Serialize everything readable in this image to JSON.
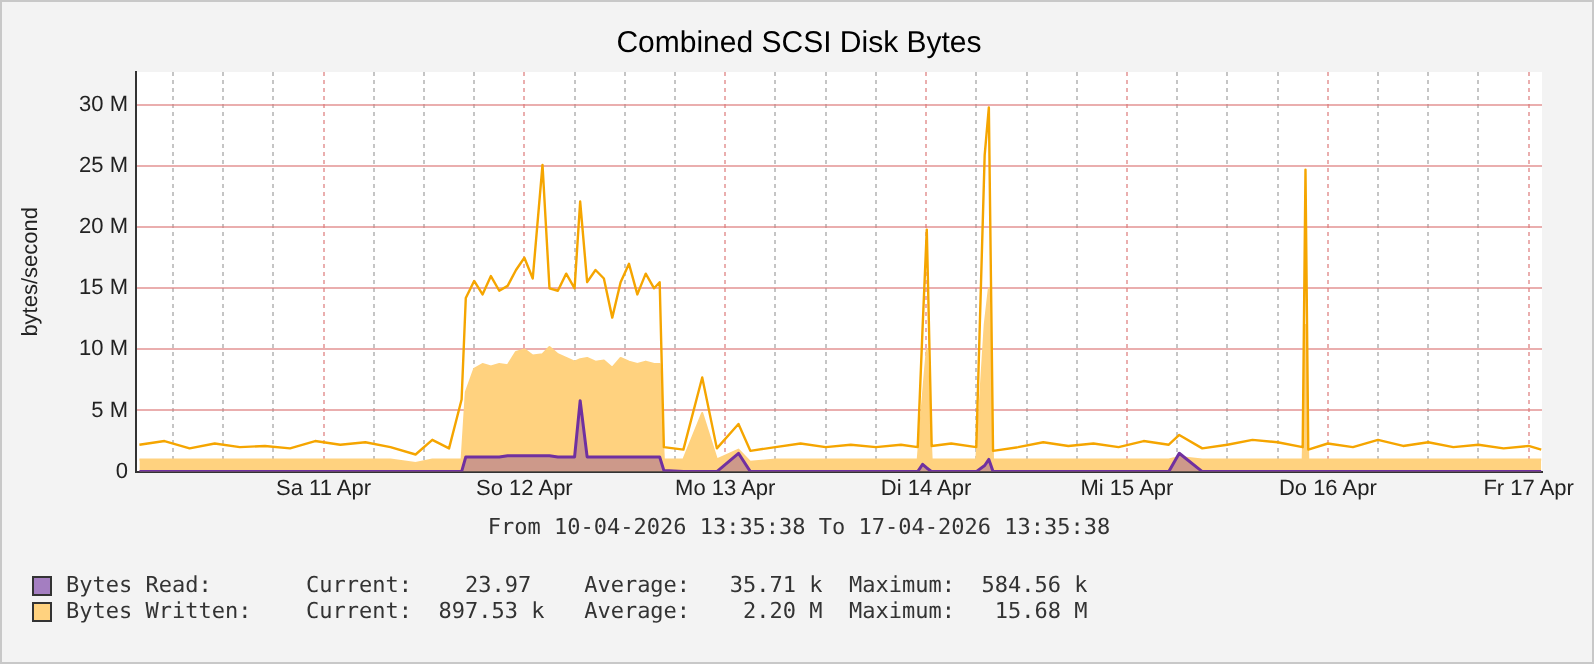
{
  "chart_data": {
    "type": "area",
    "title": "Combined SCSI Disk Bytes",
    "ylabel": "bytes/second",
    "annotations": [
      "From 10-04-2026 13:35:38 To 17-04-2026 13:35:38",
      "Current:    23.97    Average:   35.71 k  Maximum:  584.56 k",
      "Current:  897.53 k   Average:    2.20 M  Maximum:   15.68 M"
    ],
    "x": [
      "2026-04-10T14:00",
      "2026-04-10T17:00",
      "2026-04-10T20:00",
      "2026-04-10T23:00",
      "2026-04-11T02:00",
      "2026-04-11T05:00",
      "2026-04-11T08:00",
      "2026-04-11T11:00",
      "2026-04-11T14:00",
      "2026-04-11T17:00",
      "2026-04-11T20:00",
      "2026-04-11T23:00",
      "2026-04-12T01:00",
      "2026-04-12T03:00",
      "2026-04-12T04:30",
      "2026-04-12T05:00",
      "2026-04-12T06:00",
      "2026-04-12T07:00",
      "2026-04-12T08:00",
      "2026-04-12T09:00",
      "2026-04-12T10:00",
      "2026-04-12T11:00",
      "2026-04-12T12:00",
      "2026-04-12T13:00",
      "2026-04-12T14:10",
      "2026-04-12T15:00",
      "2026-04-12T16:00",
      "2026-04-12T17:00",
      "2026-04-12T18:00",
      "2026-04-12T18:40",
      "2026-04-12T19:30",
      "2026-04-12T20:30",
      "2026-04-12T21:30",
      "2026-04-12T22:30",
      "2026-04-12T23:30",
      "2026-04-13T00:30",
      "2026-04-13T01:30",
      "2026-04-13T02:30",
      "2026-04-13T03:30",
      "2026-04-13T04:10",
      "2026-04-13T04:40",
      "2026-04-13T07:00",
      "2026-04-13T09:15",
      "2026-04-13T11:00",
      "2026-04-13T13:35",
      "2026-04-13T15:00",
      "2026-04-13T18:00",
      "2026-04-13T21:00",
      "2026-04-14T00:00",
      "2026-04-14T03:00",
      "2026-04-14T06:00",
      "2026-04-14T09:00",
      "2026-04-14T11:00",
      "2026-04-14T11:35",
      "2026-04-14T12:05",
      "2026-04-14T12:40",
      "2026-04-14T15:00",
      "2026-04-14T18:00",
      "2026-04-14T19:00",
      "2026-04-14T19:30",
      "2026-04-14T20:00",
      "2026-04-14T23:00",
      "2026-04-15T02:00",
      "2026-04-15T05:00",
      "2026-04-15T08:00",
      "2026-04-15T11:00",
      "2026-04-15T14:00",
      "2026-04-15T17:00",
      "2026-04-15T18:15",
      "2026-04-15T21:00",
      "2026-04-16T00:00",
      "2026-04-16T03:00",
      "2026-04-16T06:00",
      "2026-04-16T09:00",
      "2026-04-16T09:20",
      "2026-04-16T09:40",
      "2026-04-16T12:00",
      "2026-04-16T15:00",
      "2026-04-16T18:00",
      "2026-04-16T21:00",
      "2026-04-17T00:00",
      "2026-04-17T03:00",
      "2026-04-17T06:00",
      "2026-04-17T09:00",
      "2026-04-17T12:00",
      "2026-04-17T13:30"
    ],
    "series": [
      {
        "name": "Bytes Read:",
        "type": "area",
        "color": "#7030a0",
        "values": [
          0,
          0,
          0,
          0,
          0,
          0,
          0,
          0,
          0,
          0,
          0,
          0,
          0,
          0,
          0,
          1200000.0,
          1200000.0,
          1200000.0,
          1200000.0,
          1200000.0,
          1300000.0,
          1300000.0,
          1300000.0,
          1300000.0,
          1300000.0,
          1300000.0,
          1200000.0,
          1200000.0,
          1200000.0,
          5800000.0,
          1200000.0,
          1200000.0,
          1200000.0,
          1200000.0,
          1200000.0,
          1200000.0,
          1200000.0,
          1200000.0,
          1200000.0,
          1200000.0,
          100000.0,
          0,
          0,
          0,
          1500000.0,
          0,
          0,
          0,
          0,
          0,
          0,
          0,
          0,
          600000.0,
          300000.0,
          0,
          0,
          0,
          500000.0,
          1000000.0,
          0,
          0,
          0,
          0,
          0,
          0,
          0,
          0,
          1500000.0,
          0,
          0,
          0,
          0,
          0,
          0,
          0,
          0,
          0,
          0,
          0,
          0,
          0,
          0,
          0,
          0,
          0
        ]
      },
      {
        "name": "Bytes Written:",
        "type": "area",
        "color": "#ffd27f",
        "values": [
          1000000.0,
          1000000.0,
          1000000.0,
          1000000.0,
          1000000.0,
          1000000.0,
          1000000.0,
          1000000.0,
          1000000.0,
          1000000.0,
          1000000.0,
          700000.0,
          1000000.0,
          1000000.0,
          1000000.0,
          6500000.0,
          8400000.0,
          8800000.0,
          8600000.0,
          8800000.0,
          8700000.0,
          9800000.0,
          10000000.0,
          9500000.0,
          9600000.0,
          10200000.0,
          9600000.0,
          9300000.0,
          9000000.0,
          9200000.0,
          9300000.0,
          9000000.0,
          9100000.0,
          8500000.0,
          9300000.0,
          9000000.0,
          8800000.0,
          9000000.0,
          8800000.0,
          8800000.0,
          1000000.0,
          1000000.0,
          4800000.0,
          1000000.0,
          1800000.0,
          800000.0,
          1000000.0,
          1000000.0,
          1000000.0,
          1000000.0,
          1000000.0,
          1000000.0,
          1000000.0,
          6000000.0,
          10000000.0,
          1000000.0,
          1000000.0,
          1000000.0,
          12000000.0,
          15000000.0,
          1000000.0,
          1000000.0,
          1000000.0,
          1000000.0,
          1000000.0,
          1000000.0,
          1000000.0,
          1000000.0,
          1200000.0,
          1000000.0,
          1000000.0,
          1000000.0,
          1000000.0,
          1000000.0,
          12000000.0,
          1000000.0,
          1000000.0,
          1000000.0,
          1000000.0,
          1000000.0,
          1000000.0,
          1000000.0,
          1000000.0,
          1000000.0,
          1000000.0,
          1000000.0
        ]
      },
      {
        "type": "line",
        "color": "#f5a500",
        "values": [
          2200000.0,
          2500000.0,
          1900000.0,
          2300000.0,
          2000000.0,
          2100000.0,
          1900000.0,
          2500000.0,
          2200000.0,
          2400000.0,
          2000000.0,
          1400000.0,
          2600000.0,
          1900000.0,
          5900000.0,
          14200000.0,
          15600000.0,
          14500000.0,
          16000000.0,
          14800000.0,
          15200000.0,
          16500000.0,
          17500000.0,
          15800000.0,
          25100000.0,
          15000000.0,
          14800000.0,
          16200000.0,
          15000000.0,
          22100000.0,
          15500000.0,
          16500000.0,
          15800000.0,
          12600000.0,
          15500000.0,
          17000000.0,
          14500000.0,
          16200000.0,
          15000000.0,
          15500000.0,
          2000000.0,
          1800000.0,
          7700000.0,
          1900000.0,
          3900000.0,
          1700000.0,
          2000000.0,
          2300000.0,
          2000000.0,
          2200000.0,
          2000000.0,
          2200000.0,
          2000000.0,
          11800000.0,
          19800000.0,
          2100000.0,
          2300000.0,
          2000000.0,
          25900000.0,
          29800000.0,
          1700000.0,
          2000000.0,
          2400000.0,
          2100000.0,
          2300000.0,
          2000000.0,
          2500000.0,
          2200000.0,
          3000000.0,
          1900000.0,
          2200000.0,
          2600000.0,
          2400000.0,
          2000000.0,
          24700000.0,
          1800000.0,
          2300000.0,
          2000000.0,
          2600000.0,
          2100000.0,
          2400000.0,
          2000000.0,
          2200000.0,
          1900000.0,
          2100000.0,
          1800000.0
        ]
      }
    ],
    "xlim": [
      "2026-04-10T13:35:38",
      "2026-04-17T13:35:38"
    ],
    "xticks": [
      {
        "value": "2026-04-10T18:00",
        "label": null
      },
      {
        "value": "2026-04-11T00:00",
        "label": null
      },
      {
        "value": "2026-04-11T06:00",
        "label": null
      },
      {
        "value": "2026-04-11T12:00",
        "label": "Sa 11 Apr"
      },
      {
        "value": "2026-04-11T18:00",
        "label": null
      },
      {
        "value": "2026-04-12T00:00",
        "label": null
      },
      {
        "value": "2026-04-12T06:00",
        "label": null
      },
      {
        "value": "2026-04-12T12:00",
        "label": "So 12 Apr"
      },
      {
        "value": "2026-04-12T18:00",
        "label": null
      },
      {
        "value": "2026-04-13T00:00",
        "label": null
      },
      {
        "value": "2026-04-13T06:00",
        "label": null
      },
      {
        "value": "2026-04-13T12:00",
        "label": "Mo 13 Apr"
      },
      {
        "value": "2026-04-13T18:00",
        "label": null
      },
      {
        "value": "2026-04-14T00:00",
        "label": null
      },
      {
        "value": "2026-04-14T06:00",
        "label": null
      },
      {
        "value": "2026-04-14T12:00",
        "label": "Di 14 Apr"
      },
      {
        "value": "2026-04-14T18:00",
        "label": null
      },
      {
        "value": "2026-04-15T00:00",
        "label": null
      },
      {
        "value": "2026-04-15T06:00",
        "label": null
      },
      {
        "value": "2026-04-15T12:00",
        "label": "Mi 15 Apr"
      },
      {
        "value": "2026-04-15T18:00",
        "label": null
      },
      {
        "value": "2026-04-16T00:00",
        "label": null
      },
      {
        "value": "2026-04-16T06:00",
        "label": null
      },
      {
        "value": "2026-04-16T12:00",
        "label": "Do 16 Apr"
      },
      {
        "value": "2026-04-16T18:00",
        "label": null
      },
      {
        "value": "2026-04-17T00:00",
        "label": null
      },
      {
        "value": "2026-04-17T06:00",
        "label": null
      },
      {
        "value": "2026-04-17T12:00",
        "label": "Fr 17 Apr"
      }
    ],
    "ylim": [
      0,
      32700000.0
    ],
    "yticks": [
      {
        "value": 0,
        "label": "0"
      },
      {
        "value": 5000000.0,
        "label": "5 M"
      },
      {
        "value": 10000000.0,
        "label": "10 M"
      },
      {
        "value": 15000000.0,
        "label": "15 M"
      },
      {
        "value": 20000000.0,
        "label": "20 M"
      },
      {
        "value": 25000000.0,
        "label": "25 M"
      },
      {
        "value": 30000000.0,
        "label": "30 M"
      }
    ],
    "grid": true,
    "legend": "bottom",
    "marker": "none",
    "line_style": "solid"
  }
}
